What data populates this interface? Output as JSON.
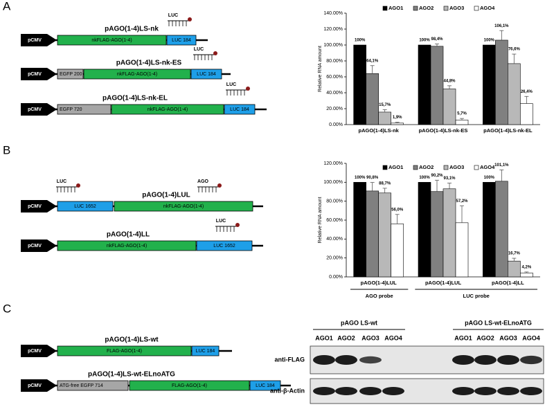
{
  "panels": [
    "A",
    "B",
    "C"
  ],
  "constructs": [
    {
      "name": "pAGO(1-4)LS-nk",
      "promoter": "pCMV",
      "elements": [
        "nkFLAG-AGO(1-4)",
        "LUC 184"
      ],
      "probes": [
        "LUC"
      ]
    },
    {
      "name": "pAGO(1-4)LS-nk-ES",
      "promoter": "pCMV",
      "elements": [
        "EGFP 200",
        "nkFLAG-AGO(1-4)",
        "LUC 184"
      ],
      "probes": [
        "LUC"
      ]
    },
    {
      "name": "pAGO(1-4)LS-nk-EL",
      "promoter": "pCMV",
      "elements": [
        "EGFP 720",
        "nkFLAG-AGO(1-4)",
        "LUC 184"
      ],
      "probes": [
        "LUC"
      ]
    },
    {
      "name": "pAGO(1-4)LUL",
      "promoter": "pCMV",
      "elements": [
        "LUC 1652",
        "nkFLAG-AGO(1-4)"
      ],
      "probes": [
        "LUC",
        "AGO"
      ]
    },
    {
      "name": "pAGO(1-4)LL",
      "promoter": "pCMV",
      "elements": [
        "nkFLAG-AGO(1-4)",
        "LUC 1652"
      ],
      "probes": [
        "LUC"
      ]
    },
    {
      "name": "pAGO(1-4)LS-wt",
      "promoter": "pCMV",
      "elements": [
        "FLAG-AGO(1-4)",
        "LUC 184"
      ],
      "probes": []
    },
    {
      "name": "pAGO(1-4)LS-wt-ELnoATG",
      "promoter": "pCMV",
      "elements": [
        "ATG-free EGFP 714",
        "FLAG-AGO(1-4)",
        "LUC 184"
      ],
      "probes": []
    }
  ],
  "chart_data": [
    {
      "type": "bar",
      "y_label": "Relative RNA amount",
      "categories": [
        "pAGO(1-4)LS-nk",
        "pAGO(1-4)LS-nk-ES",
        "pAGO(1-4)LS-nk-EL"
      ],
      "ylim": [
        0,
        140
      ],
      "yticks": [
        {
          "value": 0,
          "label": "0.00%"
        },
        {
          "value": 20,
          "label": "20.00%"
        },
        {
          "value": 40,
          "label": "40.00%"
        },
        {
          "value": 60,
          "label": "60.00%"
        },
        {
          "value": 80,
          "label": "80.00%"
        },
        {
          "value": 100,
          "label": "100.00%"
        },
        {
          "value": 120,
          "label": "120.00%"
        },
        {
          "value": 140,
          "label": "140.00%"
        }
      ],
      "legend": "top",
      "series": [
        {
          "name": "AGO1",
          "color": "#000000",
          "values": [
            100,
            100,
            100
          ],
          "errors": [
            0,
            0,
            0
          ],
          "value_labels": [
            "100%",
            "100%",
            "100%"
          ]
        },
        {
          "name": "AGO2",
          "color": "#808080",
          "values": [
            64.1,
            98.4,
            106.1
          ],
          "errors": [
            10,
            3,
            12
          ],
          "value_labels": [
            "64,1%",
            "98,4%",
            "106,1%"
          ]
        },
        {
          "name": "AGO3",
          "color": "#b8b8b8",
          "values": [
            15.7,
            44.8,
            76.6
          ],
          "errors": [
            3,
            4,
            12
          ],
          "value_labels": [
            "15,7%",
            "44,8%",
            "76,6%"
          ]
        },
        {
          "name": "AGO4",
          "color": "#ffffff",
          "values": [
            1.9,
            5.7,
            26.4
          ],
          "errors": [
            1,
            2,
            9
          ],
          "value_labels": [
            "1,9%",
            "5,7%",
            "26,4%"
          ]
        }
      ]
    },
    {
      "type": "bar",
      "y_label": "Relative RNA amount",
      "categories": [
        "pAGO(1-4)LUL",
        "pAGO(1-4)LUL",
        "pAGO(1-4)LL"
      ],
      "group_labels": [
        "AGO probe",
        "LUC probe"
      ],
      "ylim": [
        0,
        120
      ],
      "yticks": [
        {
          "value": 0,
          "label": "0.00%"
        },
        {
          "value": 20,
          "label": "20.00%"
        },
        {
          "value": 40,
          "label": "40.00%"
        },
        {
          "value": 60,
          "label": "60.00%"
        },
        {
          "value": 80,
          "label": "80.00%"
        },
        {
          "value": 100,
          "label": "100.00%"
        },
        {
          "value": 120,
          "label": "120.00%"
        }
      ],
      "legend": "top",
      "series": [
        {
          "name": "AGO1",
          "color": "#000000",
          "values": [
            100,
            100,
            100
          ],
          "errors": [
            0,
            0,
            0
          ],
          "value_labels": [
            "100%",
            "100%",
            "100%"
          ]
        },
        {
          "name": "AGO2",
          "color": "#808080",
          "values": [
            90.8,
            90.2,
            101.1
          ],
          "errors": [
            9,
            12,
            12
          ],
          "value_labels": [
            "90,8%",
            "90,2%",
            "101,1%"
          ]
        },
        {
          "name": "AGO3",
          "color": "#b8b8b8",
          "values": [
            88.7,
            93.1,
            16.7
          ],
          "errors": [
            5,
            6,
            3
          ],
          "value_labels": [
            "88,7%",
            "93,1%",
            "16,7%"
          ]
        },
        {
          "name": "AGO4",
          "color": "#ffffff",
          "values": [
            56.0,
            57.2,
            4.2
          ],
          "errors": [
            10,
            18,
            1
          ],
          "value_labels": [
            "56,0%",
            "57,2%",
            "4,2%"
          ]
        }
      ]
    }
  ],
  "blot": {
    "groups": [
      "pAGO LS-wt",
      "pAGO LS-wt-ELnoATG"
    ],
    "lanes": [
      "AGO1",
      "AGO2",
      "AGO3",
      "AGO4",
      "AGO1",
      "AGO2",
      "AGO3",
      "AGO4"
    ],
    "rows": [
      "anti-FLAG",
      "anti-β-Actin"
    ]
  }
}
